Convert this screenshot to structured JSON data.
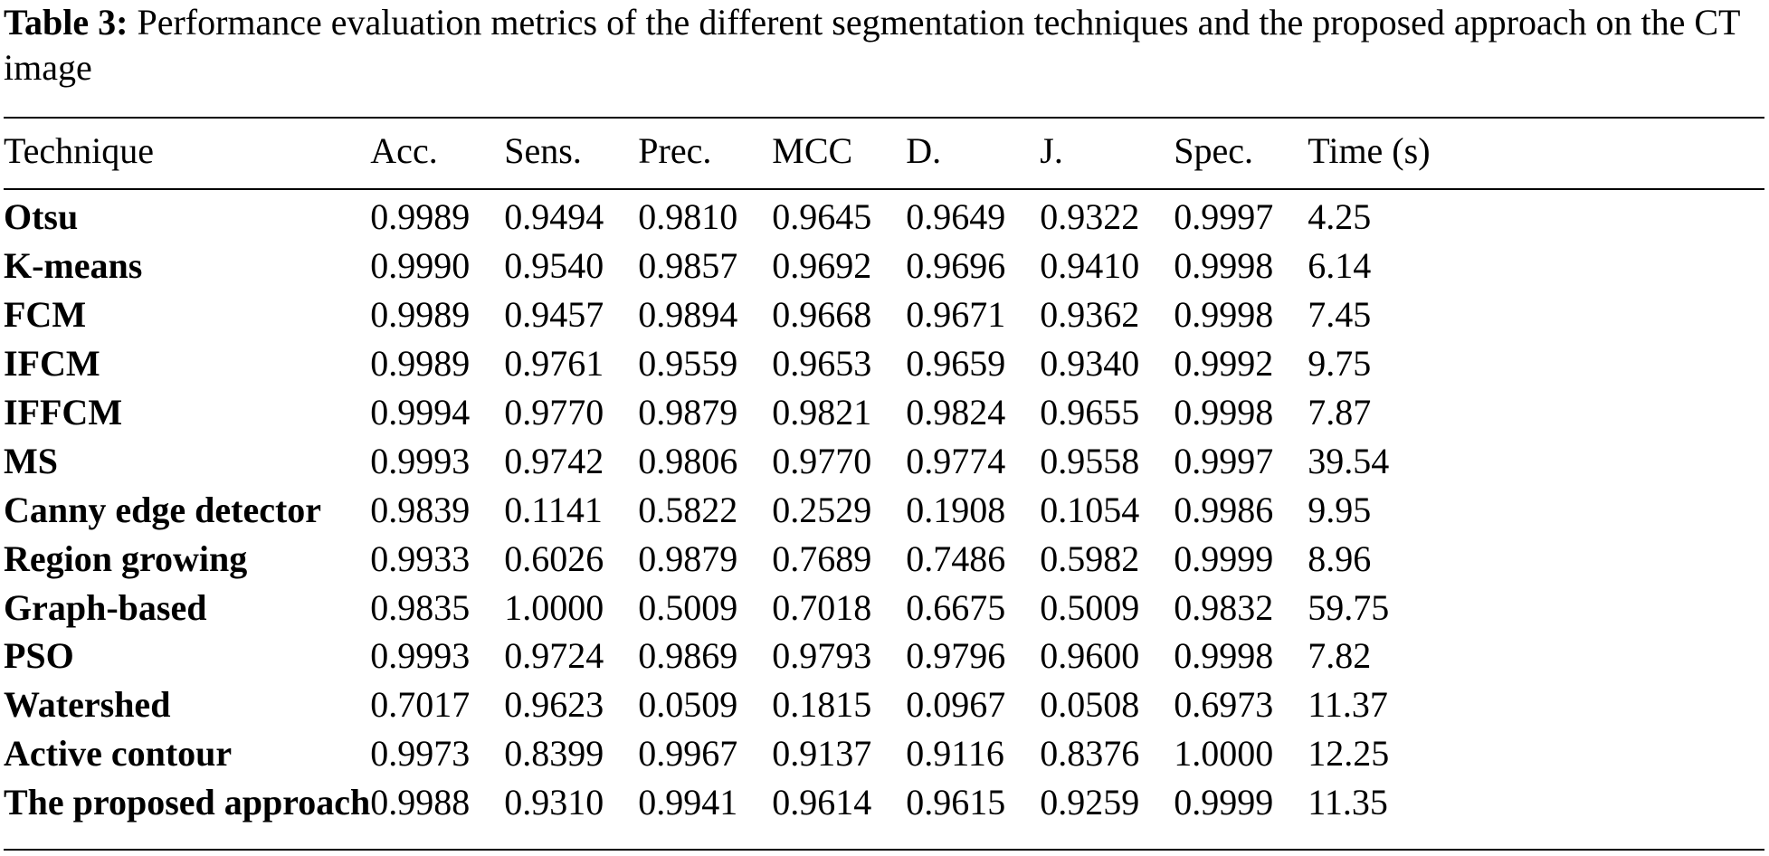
{
  "caption": {
    "label": "Table 3:",
    "text": "Performance evaluation metrics of the different segmentation techniques and the proposed approach on the CT image"
  },
  "table": {
    "headers": [
      "Technique",
      "Acc.",
      "Sens.",
      "Prec.",
      "MCC",
      "D.",
      "J.",
      "Spec.",
      "Time (s)"
    ],
    "rows": [
      [
        "Otsu",
        "0.9989",
        "0.9494",
        "0.9810",
        "0.9645",
        "0.9649",
        "0.9322",
        "0.9997",
        "4.25"
      ],
      [
        "K-means",
        "0.9990",
        "0.9540",
        "0.9857",
        "0.9692",
        "0.9696",
        "0.9410",
        "0.9998",
        "6.14"
      ],
      [
        "FCM",
        "0.9989",
        "0.9457",
        "0.9894",
        "0.9668",
        "0.9671",
        "0.9362",
        "0.9998",
        "7.45"
      ],
      [
        "IFCM",
        "0.9989",
        "0.9761",
        "0.9559",
        "0.9653",
        "0.9659",
        "0.9340",
        "0.9992",
        "9.75"
      ],
      [
        "IFFCM",
        "0.9994",
        "0.9770",
        "0.9879",
        "0.9821",
        "0.9824",
        "0.9655",
        "0.9998",
        "7.87"
      ],
      [
        "MS",
        "0.9993",
        "0.9742",
        "0.9806",
        "0.9770",
        "0.9774",
        "0.9558",
        "0.9997",
        "39.54"
      ],
      [
        "Canny edge detector",
        "0.9839",
        "0.1141",
        "0.5822",
        "0.2529",
        "0.1908",
        "0.1054",
        "0.9986",
        "9.95"
      ],
      [
        "Region growing",
        "0.9933",
        "0.6026",
        "0.9879",
        "0.7689",
        "0.7486",
        "0.5982",
        "0.9999",
        "8.96"
      ],
      [
        "Graph-based",
        "0.9835",
        "1.0000",
        "0.5009",
        "0.7018",
        "0.6675",
        "0.5009",
        "0.9832",
        "59.75"
      ],
      [
        "PSO",
        "0.9993",
        "0.9724",
        "0.9869",
        "0.9793",
        "0.9796",
        "0.9600",
        "0.9998",
        "7.82"
      ],
      [
        "Watershed",
        "0.7017",
        "0.9623",
        "0.0509",
        "0.1815",
        "0.0967",
        "0.0508",
        "0.6973",
        "11.37"
      ],
      [
        "Active contour",
        "0.9973",
        "0.8399",
        "0.9967",
        "0.9137",
        "0.9116",
        "0.8376",
        "1.0000",
        "12.25"
      ],
      [
        "The proposed approach",
        "0.9988",
        "0.9310",
        "0.9941",
        "0.9614",
        "0.9615",
        "0.9259",
        "0.9999",
        "11.35"
      ]
    ]
  }
}
